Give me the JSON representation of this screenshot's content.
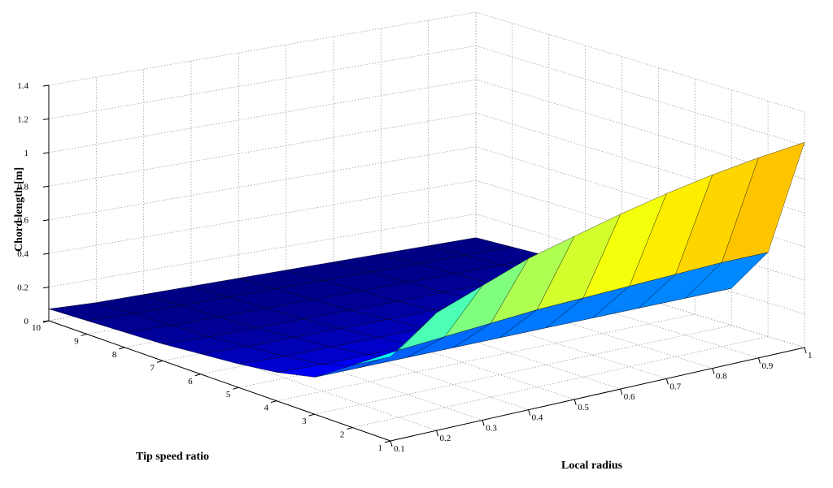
{
  "chart_data": {
    "type": "surface3d",
    "title": "",
    "xlabel": "Local radius",
    "ylabel": "Tip speed ratio",
    "zlabel": "Chord length [m]",
    "x_ticks": [
      "0.1",
      "0.2",
      "0.3",
      "0.4",
      "0.5",
      "0.6",
      "0.7",
      "0.8",
      "0.9",
      "1"
    ],
    "y_ticks": [
      "1",
      "2",
      "3",
      "4",
      "5",
      "6",
      "7",
      "8",
      "9",
      "10"
    ],
    "z_ticks": [
      "0",
      "0.2",
      "0.4",
      "0.6",
      "0.8",
      "1",
      "1.2",
      "1.4"
    ],
    "xlim": [
      0.1,
      1
    ],
    "ylim": [
      1,
      10
    ],
    "zlim": [
      0,
      1.4
    ],
    "grid": true,
    "colormap": "jet",
    "x": [
      0.1,
      0.2,
      0.3,
      0.4,
      0.5,
      0.6,
      0.7,
      0.8,
      0.9,
      1.0
    ],
    "y": [
      1,
      2,
      3,
      4,
      5,
      6,
      7,
      8,
      9,
      10
    ],
    "z": [
      [
        0.5,
        0.7,
        0.8,
        0.9,
        0.97,
        1.04,
        1.1,
        1.15,
        1.19,
        1.22
      ],
      [
        0.37,
        0.4,
        0.42,
        0.44,
        0.46,
        0.47,
        0.48,
        0.49,
        0.5,
        0.5
      ],
      [
        0.22,
        0.22,
        0.22,
        0.22,
        0.22,
        0.22,
        0.22,
        0.22,
        0.22,
        0.22
      ],
      [
        0.17,
        0.16,
        0.16,
        0.16,
        0.16,
        0.16,
        0.16,
        0.16,
        0.16,
        0.16
      ],
      [
        0.14,
        0.13,
        0.13,
        0.13,
        0.13,
        0.13,
        0.13,
        0.13,
        0.13,
        0.13
      ],
      [
        0.12,
        0.11,
        0.11,
        0.11,
        0.11,
        0.11,
        0.11,
        0.11,
        0.11,
        0.11
      ],
      [
        0.1,
        0.09,
        0.09,
        0.09,
        0.09,
        0.09,
        0.09,
        0.09,
        0.09,
        0.09
      ],
      [
        0.09,
        0.08,
        0.08,
        0.08,
        0.08,
        0.08,
        0.08,
        0.08,
        0.08,
        0.08
      ],
      [
        0.08,
        0.07,
        0.07,
        0.07,
        0.07,
        0.07,
        0.07,
        0.07,
        0.07,
        0.07
      ],
      [
        0.07,
        0.06,
        0.06,
        0.06,
        0.06,
        0.06,
        0.06,
        0.06,
        0.06,
        0.06
      ]
    ]
  }
}
